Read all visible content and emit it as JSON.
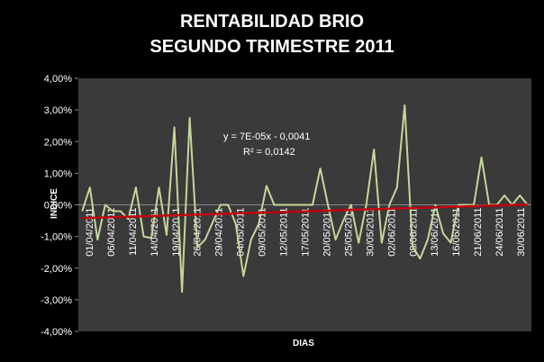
{
  "chart_data": {
    "type": "line",
    "title_line1": "RENTABILIDAD BRIO",
    "title_line2": "SEGUNDO TRIMESTRE 2011",
    "xlabel": "DIAS",
    "ylabel": "INDICE",
    "ylim": [
      -0.04,
      0.04
    ],
    "yticks": [
      0.04,
      0.03,
      0.02,
      0.01,
      0.0,
      -0.01,
      -0.02,
      -0.03,
      -0.04
    ],
    "ytick_labels": [
      "4,00%",
      "3,00%",
      "2,00%",
      "1,00%",
      "0,00%",
      "-1,00%",
      "-2,00%",
      "-3,00%",
      "-4,00%"
    ],
    "xtick_labels": [
      "01/04/2011",
      "06/04/2011",
      "11/04/2011",
      "14/04/2011",
      "19/04/2011",
      "26/04/2011",
      "29/04/2011",
      "04/05/2011",
      "09/05/2011",
      "12/05/2011",
      "17/05/2011",
      "20/05/2011",
      "25/05/2011",
      "30/05/2011",
      "02/06/2011",
      "08/06/2011",
      "13/06/2011",
      "16/06/2011",
      "21/06/2011",
      "24/06/2011",
      "30/06/2011"
    ],
    "series": [
      {
        "color": "#c4d79b",
        "values": [
          -0.002,
          0.0055,
          -0.011,
          0.0,
          -0.002,
          -0.002,
          -0.0045,
          0.0055,
          -0.01,
          -0.0105,
          0.0055,
          -0.0095,
          0.0245,
          -0.0275,
          0.0275,
          -0.0135,
          -0.011,
          -0.0055,
          0.0,
          0.0,
          -0.006,
          -0.0225,
          -0.011,
          -0.006,
          0.006,
          0.0,
          0.0,
          0.0,
          0.0,
          0.0,
          0.0,
          0.0115,
          0.0,
          -0.011,
          -0.005,
          0.0,
          -0.012,
          0.0,
          0.0175,
          -0.012,
          0.0,
          0.0055,
          0.0315,
          -0.013,
          -0.017,
          -0.011,
          0.0,
          -0.009,
          -0.012,
          0.0,
          0.0,
          0.0,
          0.015,
          0.0,
          0.0,
          0.003,
          0.0,
          0.003,
          0.0
        ]
      },
      {
        "color": "#c0000f",
        "trendline": true,
        "values": [
          -0.0042,
          0.0001
        ]
      }
    ],
    "annotation_line1": "y = 7E-05x - 0,0041",
    "annotation_line2": "R² = 0,0142",
    "grid": false,
    "legend": "none"
  }
}
